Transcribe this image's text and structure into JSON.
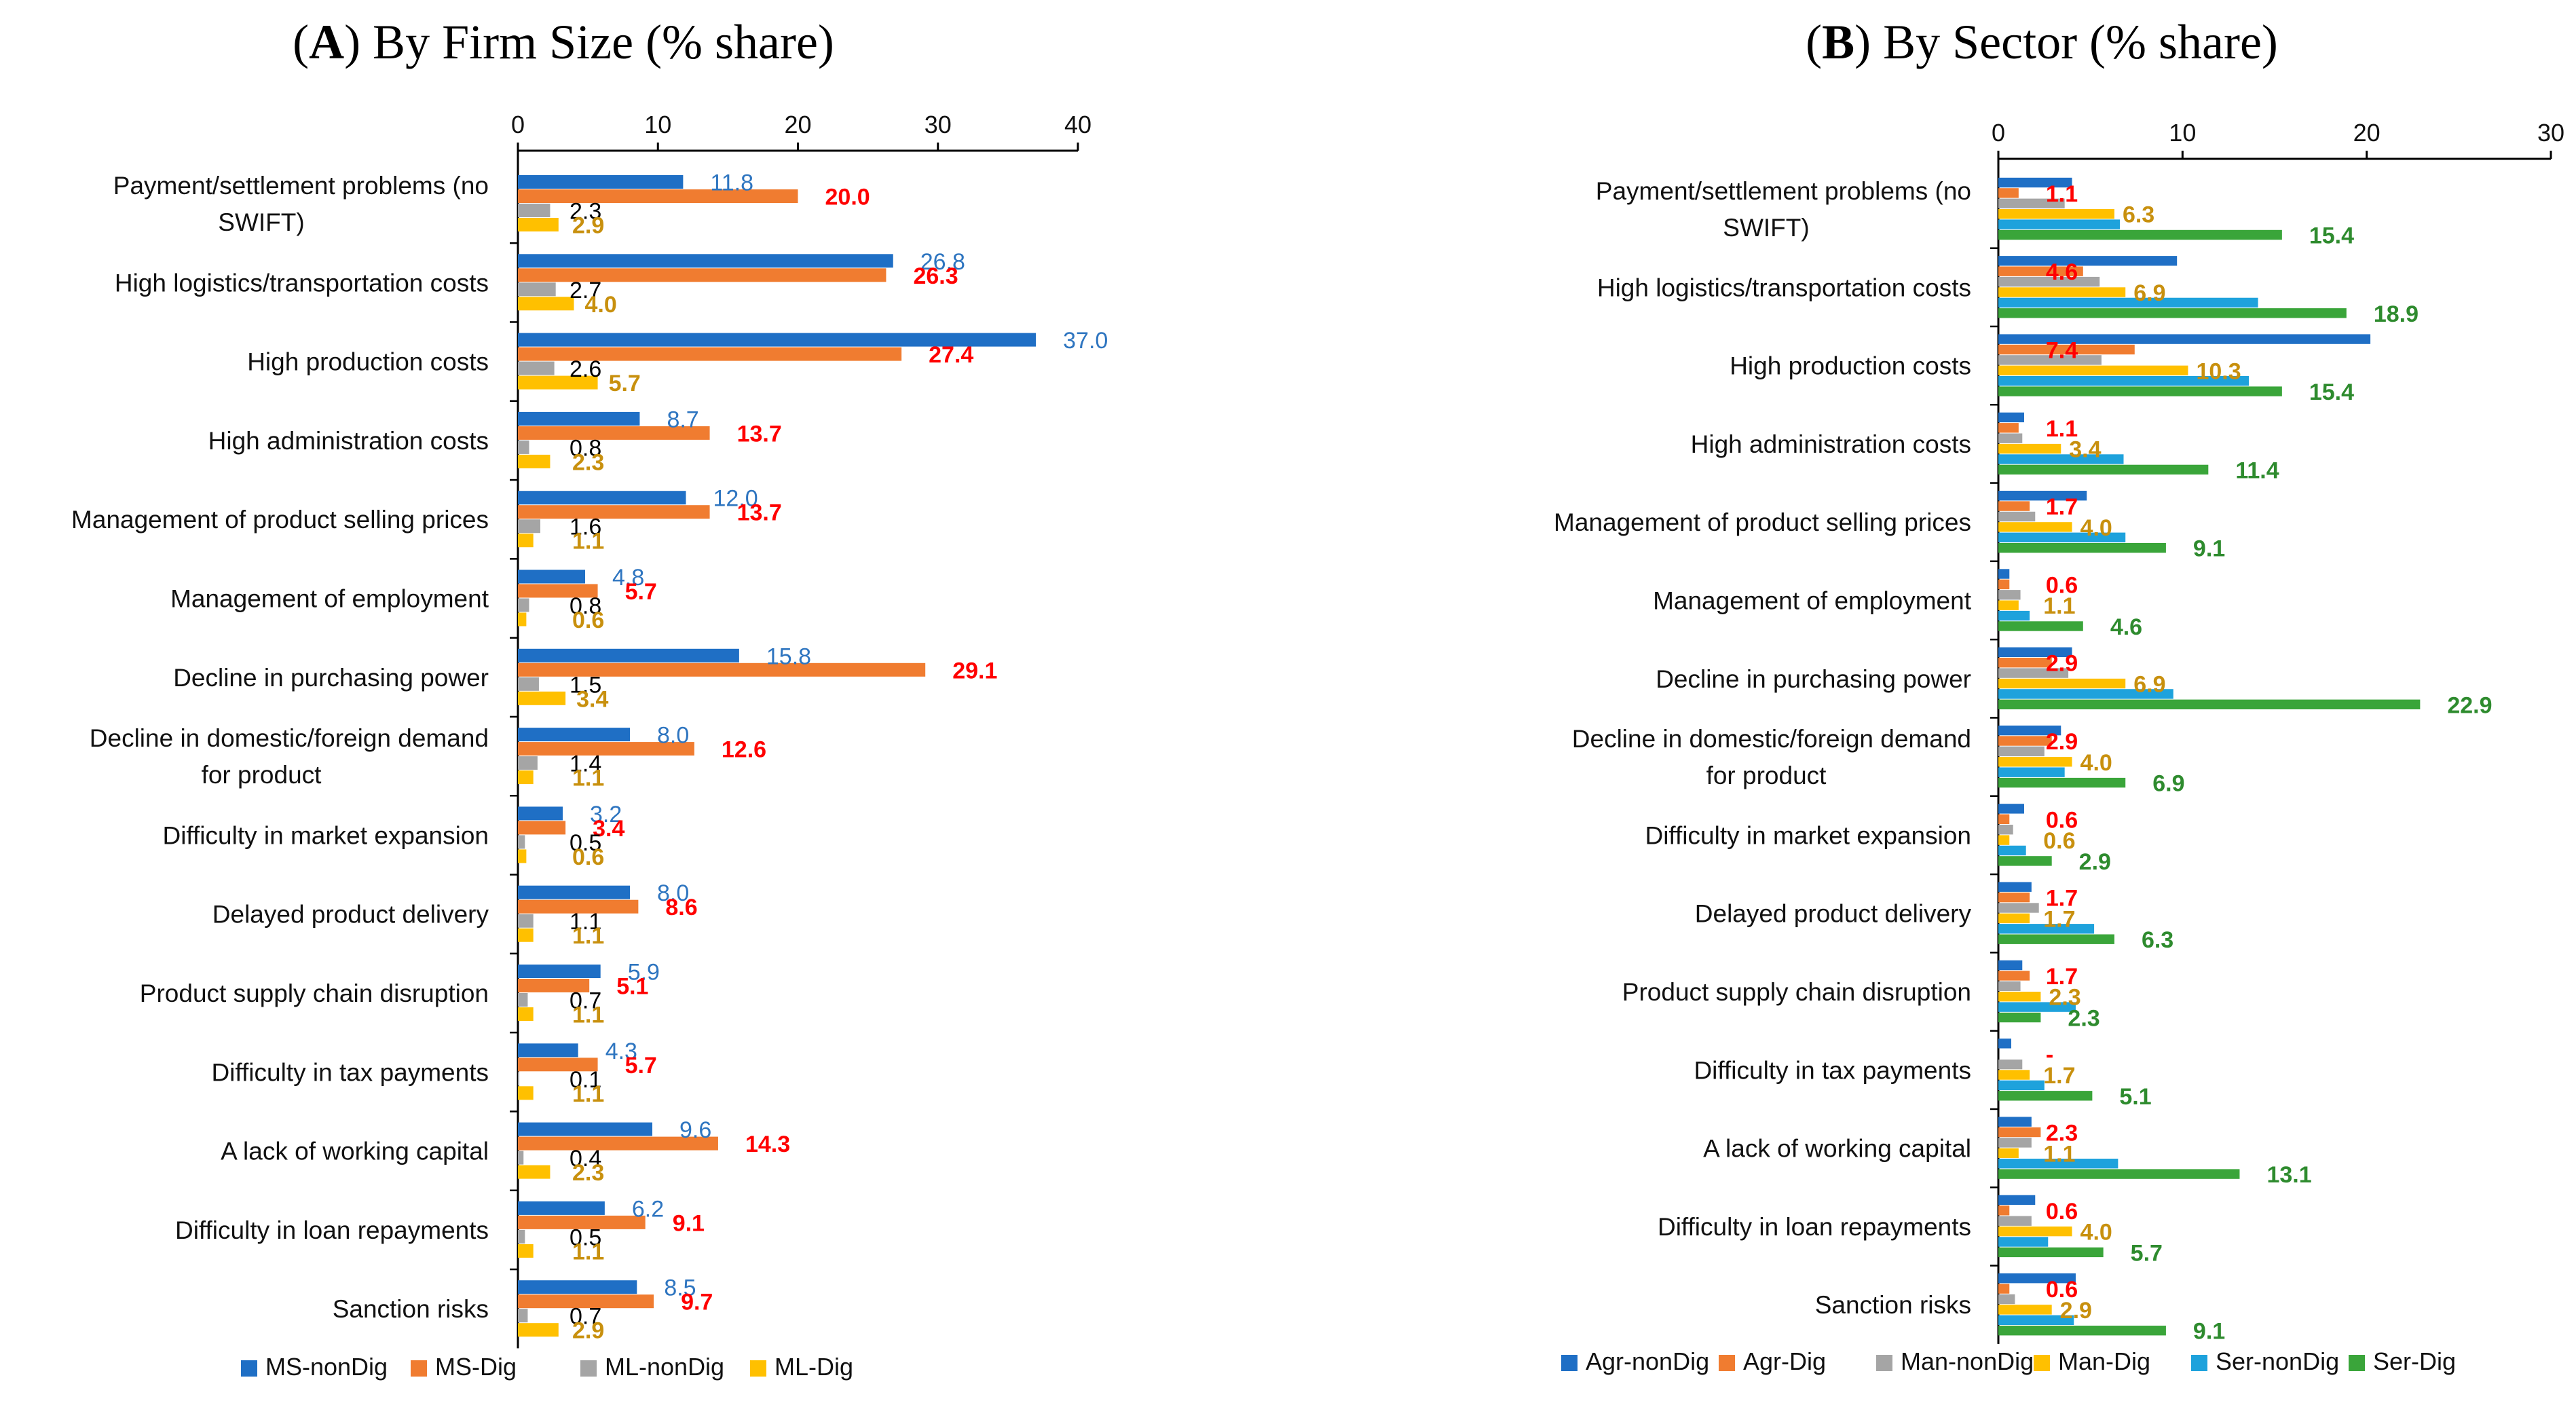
{
  "chart_data": [
    {
      "type": "bar",
      "orientation": "horizontal",
      "title_letter": "A",
      "title_rest": ") By Firm Size (% share)",
      "xlim": [
        0,
        40
      ],
      "xticks": [
        0,
        10,
        20,
        30,
        40
      ],
      "categories": [
        [
          "Payment/settlement problems (no",
          "SWIFT)"
        ],
        [
          "High logistics/transportation costs"
        ],
        [
          "High production costs"
        ],
        [
          "High administration costs"
        ],
        [
          "Management of product selling prices"
        ],
        [
          "Management of employment"
        ],
        [
          "Decline in purchasing power"
        ],
        [
          "Decline in domestic/foreign demand",
          "for product"
        ],
        [
          "Difficulty in market expansion"
        ],
        [
          "Delayed product delivery"
        ],
        [
          "Product supply chain disruption"
        ],
        [
          "Difficulty in tax payments"
        ],
        [
          "A lack of working capital"
        ],
        [
          "Difficulty in loan repayments"
        ],
        [
          "Sanction risks"
        ]
      ],
      "series": [
        {
          "name": "MS-nonDig",
          "color": "#1f6fc5",
          "label_color": "#2e75c0",
          "bold": false,
          "values": [
            11.8,
            26.8,
            37.0,
            8.7,
            12.0,
            4.8,
            15.8,
            8.0,
            3.2,
            8.0,
            5.9,
            4.3,
            9.6,
            6.2,
            8.5
          ],
          "labels": [
            "11.8",
            "26.8",
            "37.0",
            "8.7",
            "12.0",
            "4.8",
            "15.8",
            "8.0",
            "3.2",
            "8.0",
            "5.9",
            "4.3",
            "9.6",
            "6.2",
            "8.5"
          ]
        },
        {
          "name": "MS-Dig",
          "color": "#f07c30",
          "label_color": "#ff0000",
          "bold": true,
          "values": [
            20.0,
            26.3,
            27.4,
            13.7,
            13.7,
            5.7,
            29.1,
            12.6,
            3.4,
            8.6,
            5.1,
            5.7,
            14.3,
            9.1,
            9.7
          ],
          "labels": [
            "20.0",
            "26.3",
            "27.4",
            "13.7",
            "13.7",
            "5.7",
            "29.1",
            "12.6",
            "3.4",
            "8.6",
            "5.1",
            "5.7",
            "14.3",
            "9.1",
            "9.7"
          ]
        },
        {
          "name": "ML-nonDig",
          "color": "#a5a5a5",
          "label_color": "#000000",
          "bold": false,
          "values": [
            2.3,
            2.7,
            2.6,
            0.8,
            1.6,
            0.8,
            1.5,
            1.4,
            0.5,
            1.1,
            0.7,
            0.1,
            0.4,
            0.5,
            0.7
          ],
          "labels": [
            "2.3",
            "2.7",
            "2.6",
            "0.8",
            "1.6",
            "0.8",
            "1.5",
            "1.4",
            "0.5",
            "1.1",
            "0.7",
            "0.1",
            "0.4",
            "0.5",
            "0.7"
          ]
        },
        {
          "name": "ML-Dig",
          "color": "#ffc000",
          "label_color": "#c8900e",
          "bold": true,
          "values": [
            2.9,
            4.0,
            5.7,
            2.3,
            1.1,
            0.6,
            3.4,
            1.1,
            0.6,
            1.1,
            1.1,
            1.1,
            2.3,
            1.1,
            2.9
          ],
          "labels": [
            "2.9",
            "4.0",
            "5.7",
            "2.3",
            "1.1",
            "0.6",
            "3.4",
            "1.1",
            "0.6",
            "1.1",
            "1.1",
            "1.1",
            "2.3",
            "1.1",
            "2.9"
          ]
        }
      ]
    },
    {
      "type": "bar",
      "orientation": "horizontal",
      "title_letter": "B",
      "title_rest": ") By Sector (% share)",
      "xlim": [
        0,
        30
      ],
      "xticks": [
        0,
        10,
        20,
        30
      ],
      "categories": [
        [
          "Payment/settlement problems (no",
          "SWIFT)"
        ],
        [
          "High logistics/transportation costs"
        ],
        [
          "High production costs"
        ],
        [
          "High administration costs"
        ],
        [
          "Management of product selling prices"
        ],
        [
          "Management of employment"
        ],
        [
          "Decline in purchasing power"
        ],
        [
          "Decline in domestic/foreign demand",
          "for product"
        ],
        [
          "Difficulty in market expansion"
        ],
        [
          "Delayed product delivery"
        ],
        [
          "Product supply chain disruption"
        ],
        [
          "Difficulty in tax payments"
        ],
        [
          "A lack of working capital"
        ],
        [
          "Difficulty in loan repayments"
        ],
        [
          "Sanction risks"
        ]
      ],
      "series": [
        {
          "name": "Agr-nonDig",
          "color": "#1f6fc5",
          "values": [
            4.0,
            9.7,
            20.2,
            1.4,
            4.8,
            0.6,
            4.0,
            3.4,
            1.4,
            1.8,
            1.3,
            0.7,
            1.8,
            2.0,
            4.2
          ]
        },
        {
          "name": "Agr-Dig",
          "color": "#f07c30",
          "label_color": "#ff0000",
          "bold": true,
          "values": [
            1.1,
            4.6,
            7.4,
            1.1,
            1.7,
            0.6,
            2.9,
            2.9,
            0.6,
            1.7,
            1.7,
            0.0,
            2.3,
            0.6,
            0.6
          ],
          "labels": [
            "1.1",
            "4.6",
            "7.4",
            "1.1",
            "1.7",
            "0.6",
            "2.9",
            "2.9",
            "0.6",
            "1.7",
            "1.7",
            "-",
            "2.3",
            "0.6",
            "0.6"
          ]
        },
        {
          "name": "Man-nonDig",
          "color": "#a5a5a5",
          "values": [
            3.6,
            5.5,
            5.6,
            1.3,
            2.0,
            1.2,
            3.8,
            2.5,
            0.8,
            2.2,
            1.2,
            1.3,
            1.8,
            1.8,
            0.9
          ]
        },
        {
          "name": "Man-Dig",
          "color": "#ffc000",
          "label_color": "#c8900e",
          "bold": true,
          "values": [
            6.3,
            6.9,
            10.3,
            3.4,
            4.0,
            1.1,
            6.9,
            4.0,
            0.6,
            1.7,
            2.3,
            1.7,
            1.1,
            4.0,
            2.9
          ],
          "labels": [
            "6.3",
            "6.9",
            "10.3",
            "3.4",
            "4.0",
            "1.1",
            "6.9",
            "4.0",
            "0.6",
            "1.7",
            "2.3",
            "1.7",
            "1.1",
            "4.0",
            "2.9"
          ]
        },
        {
          "name": "Ser-nonDig",
          "color": "#1ea2dc",
          "values": [
            6.6,
            14.1,
            13.6,
            6.8,
            6.9,
            1.7,
            9.5,
            3.6,
            1.5,
            5.2,
            4.2,
            2.5,
            6.5,
            2.7,
            4.1
          ]
        },
        {
          "name": "Ser-Dig",
          "color": "#3aa53a",
          "label_color": "#2e8b2e",
          "bold": true,
          "values": [
            15.4,
            18.9,
            15.4,
            11.4,
            9.1,
            4.6,
            22.9,
            6.9,
            2.9,
            6.3,
            2.3,
            5.1,
            13.1,
            5.7,
            9.1
          ],
          "labels": [
            "15.4",
            "18.9",
            "15.4",
            "11.4",
            "9.1",
            "4.6",
            "22.9",
            "6.9",
            "2.9",
            "6.3",
            "2.3",
            "5.1",
            "13.1",
            "5.7",
            "9.1"
          ]
        }
      ]
    }
  ]
}
